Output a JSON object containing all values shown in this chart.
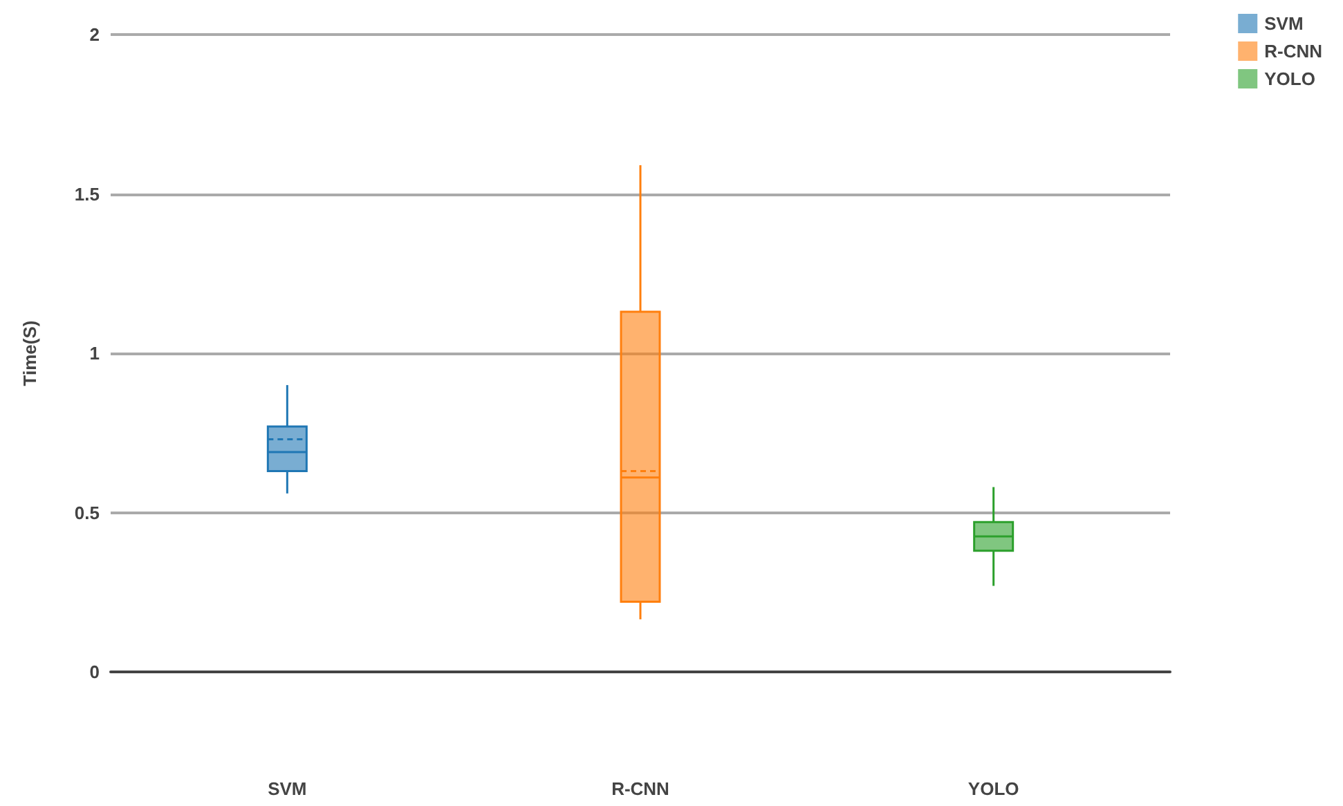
{
  "chart_data": {
    "type": "box",
    "ylabel": "Time(S)",
    "categories": [
      "SVM",
      "R-CNN",
      "YOLO"
    ],
    "series": [
      {
        "name": "SVM",
        "color": "#1f77b4",
        "boxes": [
          {
            "low": 0.56,
            "q1": 0.63,
            "median": 0.69,
            "q3": 0.77,
            "high": 0.9,
            "mean": 0.73
          },
          null,
          null
        ]
      },
      {
        "name": "R-CNN",
        "color": "#ff7f0e",
        "boxes": [
          null,
          {
            "low": 0.165,
            "q1": 0.22,
            "median": 0.61,
            "q3": 1.13,
            "high": 1.59,
            "mean": 0.63
          },
          null
        ]
      },
      {
        "name": "YOLO",
        "color": "#2ca02c",
        "boxes": [
          null,
          null,
          {
            "low": 0.27,
            "q1": 0.38,
            "median": 0.425,
            "q3": 0.47,
            "high": 0.58
          }
        ]
      }
    ],
    "ylim": [
      0,
      2
    ],
    "yticks": [
      0,
      0.5,
      1,
      1.5,
      2
    ],
    "grid": "y",
    "legend": "top right"
  }
}
